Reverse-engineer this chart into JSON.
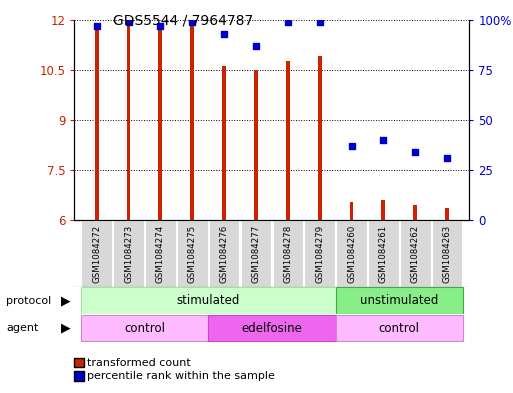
{
  "title": "GDS5544 / 7964787",
  "samples": [
    "GSM1084272",
    "GSM1084273",
    "GSM1084274",
    "GSM1084275",
    "GSM1084276",
    "GSM1084277",
    "GSM1084278",
    "GSM1084279",
    "GSM1084260",
    "GSM1084261",
    "GSM1084262",
    "GSM1084263"
  ],
  "bar_values": [
    11.85,
    11.85,
    11.85,
    11.85,
    10.6,
    10.5,
    10.75,
    10.9,
    6.55,
    6.6,
    6.45,
    6.35
  ],
  "scatter_values": [
    97,
    99,
    97,
    99,
    93,
    87,
    99,
    99,
    37,
    40,
    34,
    31
  ],
  "bar_color": "#cc2200",
  "scatter_color": "#0000cc",
  "ylim_left": [
    6,
    12
  ],
  "ylim_right": [
    0,
    100
  ],
  "yticks_left": [
    6,
    7.5,
    9,
    10.5,
    12
  ],
  "ytick_labels_left": [
    "6",
    "7.5",
    "9",
    "10.5",
    "12"
  ],
  "ytick_labels_right": [
    "0",
    "25",
    "50",
    "75",
    "100%"
  ],
  "protocol_color_stim": "#ccffcc",
  "protocol_color_unstim": "#88ee88",
  "agent_control_color": "#ffbbff",
  "agent_edelfosine_color": "#ee66ee",
  "legend_bar_label": "transformed count",
  "legend_scatter_label": "percentile rank within the sample"
}
